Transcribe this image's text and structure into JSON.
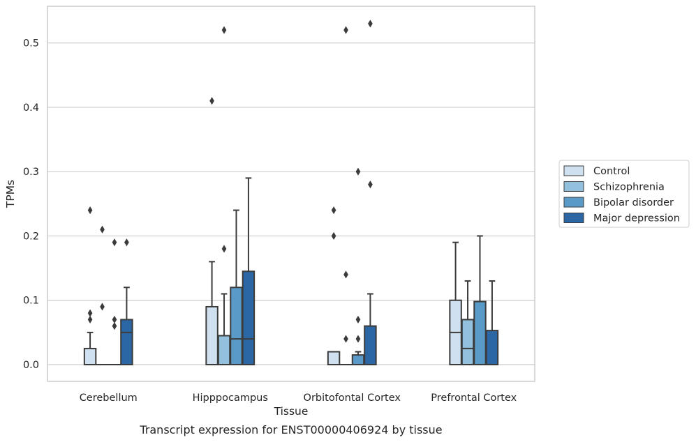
{
  "chart_data": {
    "type": "box",
    "title": "",
    "caption": "Transcript expression for ENST00000406924 by tissue",
    "xlabel": "Tissue",
    "ylabel": "TPMs",
    "ylim": [
      -0.026,
      0.557
    ],
    "yticks": [
      0.0,
      0.1,
      0.2,
      0.3,
      0.4,
      0.5
    ],
    "ytick_labels": [
      "0.0",
      "0.1",
      "0.2",
      "0.3",
      "0.4",
      "0.5"
    ],
    "grid": "horizontal",
    "legend_position": "right",
    "categories": [
      "Cerebellum",
      "Hipppocampus",
      "Orbitofontal Cortex",
      "Prefrontal Cortex"
    ],
    "series": [
      {
        "name": "Control",
        "color": "#cfe0f1",
        "boxes": [
          {
            "q1": 0.0,
            "median": 0.0,
            "q3": 0.025,
            "whisker_low": 0.0,
            "whisker_high": 0.05,
            "outliers": [
              0.07,
              0.08,
              0.24
            ]
          },
          {
            "q1": 0.0,
            "median": 0.0,
            "q3": 0.09,
            "whisker_low": 0.0,
            "whisker_high": 0.16,
            "outliers": [
              0.41
            ]
          },
          {
            "q1": 0.0,
            "median": 0.0,
            "q3": 0.02,
            "whisker_low": 0.0,
            "whisker_high": 0.02,
            "outliers": [
              0.2,
              0.24
            ]
          },
          {
            "q1": 0.0,
            "median": 0.05,
            "q3": 0.1,
            "whisker_low": 0.0,
            "whisker_high": 0.19,
            "outliers": []
          }
        ]
      },
      {
        "name": "Schizophrenia",
        "color": "#93c0dc",
        "boxes": [
          {
            "q1": 0.0,
            "median": 0.0,
            "q3": 0.0,
            "whisker_low": 0.0,
            "whisker_high": 0.0,
            "outliers": [
              0.09,
              0.21
            ]
          },
          {
            "q1": 0.0,
            "median": 0.0,
            "q3": 0.045,
            "whisker_low": 0.0,
            "whisker_high": 0.11,
            "outliers": [
              0.18,
              0.52
            ]
          },
          {
            "q1": 0.0,
            "median": 0.0,
            "q3": 0.0,
            "whisker_low": 0.0,
            "whisker_high": 0.0,
            "outliers": [
              0.04,
              0.14,
              0.52
            ]
          },
          {
            "q1": 0.0,
            "median": 0.025,
            "q3": 0.07,
            "whisker_low": 0.0,
            "whisker_high": 0.13,
            "outliers": []
          }
        ]
      },
      {
        "name": "Bipolar disorder",
        "color": "#5a9ac8",
        "boxes": [
          {
            "q1": 0.0,
            "median": 0.0,
            "q3": 0.0,
            "whisker_low": 0.0,
            "whisker_high": 0.0,
            "outliers": [
              0.06,
              0.07,
              0.19
            ]
          },
          {
            "q1": 0.0,
            "median": 0.04,
            "q3": 0.12,
            "whisker_low": 0.0,
            "whisker_high": 0.24,
            "outliers": []
          },
          {
            "q1": 0.0,
            "median": 0.0,
            "q3": 0.015,
            "whisker_low": 0.0,
            "whisker_high": 0.02,
            "outliers": [
              0.04,
              0.07,
              0.3
            ]
          },
          {
            "q1": 0.0,
            "median": 0.0,
            "q3": 0.098,
            "whisker_low": 0.0,
            "whisker_high": 0.2,
            "outliers": []
          }
        ]
      },
      {
        "name": "Major depression",
        "color": "#2b66a5",
        "boxes": [
          {
            "q1": 0.0,
            "median": 0.05,
            "q3": 0.07,
            "whisker_low": 0.0,
            "whisker_high": 0.12,
            "outliers": [
              0.19
            ]
          },
          {
            "q1": 0.0,
            "median": 0.04,
            "q3": 0.145,
            "whisker_low": 0.0,
            "whisker_high": 0.29,
            "outliers": []
          },
          {
            "q1": 0.0,
            "median": 0.0,
            "q3": 0.06,
            "whisker_low": 0.0,
            "whisker_high": 0.11,
            "outliers": [
              0.28,
              0.53
            ]
          },
          {
            "q1": 0.0,
            "median": 0.0,
            "q3": 0.053,
            "whisker_low": 0.0,
            "whisker_high": 0.13,
            "outliers": []
          }
        ]
      }
    ]
  },
  "colors": {
    "edge": "#3b3b3b",
    "grid": "#cccccc",
    "axes_frame": "#cccccc"
  }
}
